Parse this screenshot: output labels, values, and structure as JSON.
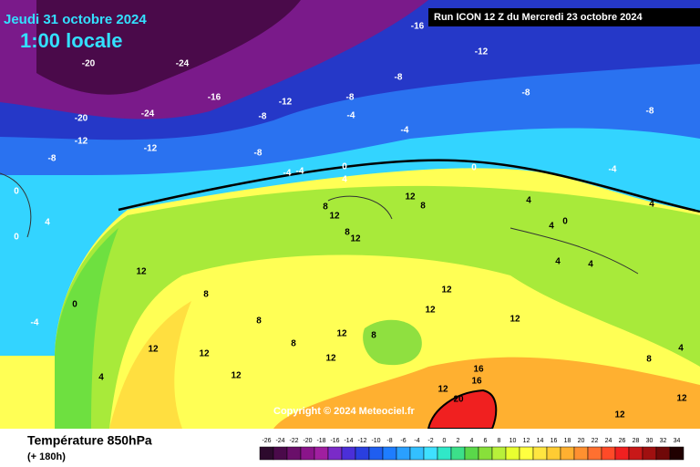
{
  "header": {
    "date": "Jeudi 31 octobre 2024",
    "time": "1:00 locale",
    "run": "Run ICON 12 Z du Mercredi 23 octobre 2024",
    "copyright": "Copyright © 2024 Meteociel.fr"
  },
  "footer": {
    "title": "Température 850hPa",
    "subtitle": "(+ 180h)"
  },
  "scale": {
    "labels": [
      "-26",
      "-24",
      "-22",
      "-20",
      "-18",
      "-16",
      "-14",
      "-12",
      "-10",
      "-8",
      "-6",
      "-4",
      "-2",
      "0",
      "2",
      "4",
      "6",
      "8",
      "10",
      "12",
      "14",
      "16",
      "18",
      "20",
      "22",
      "24",
      "26",
      "28",
      "30",
      "32",
      "34"
    ],
    "colors": [
      "#2d0a2d",
      "#4a0a4a",
      "#6a0f6a",
      "#8a148a",
      "#a01fa0",
      "#7a2bc8",
      "#4b2fd8",
      "#2a3fe0",
      "#1f5ef0",
      "#1e7dff",
      "#2aa0ff",
      "#33c0ff",
      "#3fe0ff",
      "#30e8c8",
      "#3ce08a",
      "#5ad84a",
      "#88e03a",
      "#b8f03a",
      "#e8ff30",
      "#ffff40",
      "#ffe640",
      "#ffcc33",
      "#ffb030",
      "#ff9030",
      "#ff7030",
      "#ff4a28",
      "#f02020",
      "#c81818",
      "#a01010",
      "#700808",
      "#200000"
    ]
  },
  "map_labels": [
    "-24",
    "-20",
    "-24",
    "-16",
    "-12",
    "-8",
    "-8",
    "-12",
    "-16",
    "-8",
    "-8",
    "-12",
    "-8",
    "-8",
    "-4",
    "-4",
    "-4",
    "-4",
    "0",
    "4",
    "-8",
    "-20",
    "-12",
    "0",
    "4",
    "0",
    "8",
    "12",
    "12",
    "8",
    "8",
    "12",
    "12",
    "8",
    "12",
    "12",
    "12",
    "4",
    "4",
    "0",
    "4",
    "4",
    "8",
    "8",
    "12",
    "12",
    "8",
    "12",
    "12",
    "12",
    "4",
    "0",
    "-4",
    "16",
    "16",
    "12",
    "20",
    "12",
    "12",
    "8",
    "4",
    "-4",
    "0",
    "4"
  ]
}
